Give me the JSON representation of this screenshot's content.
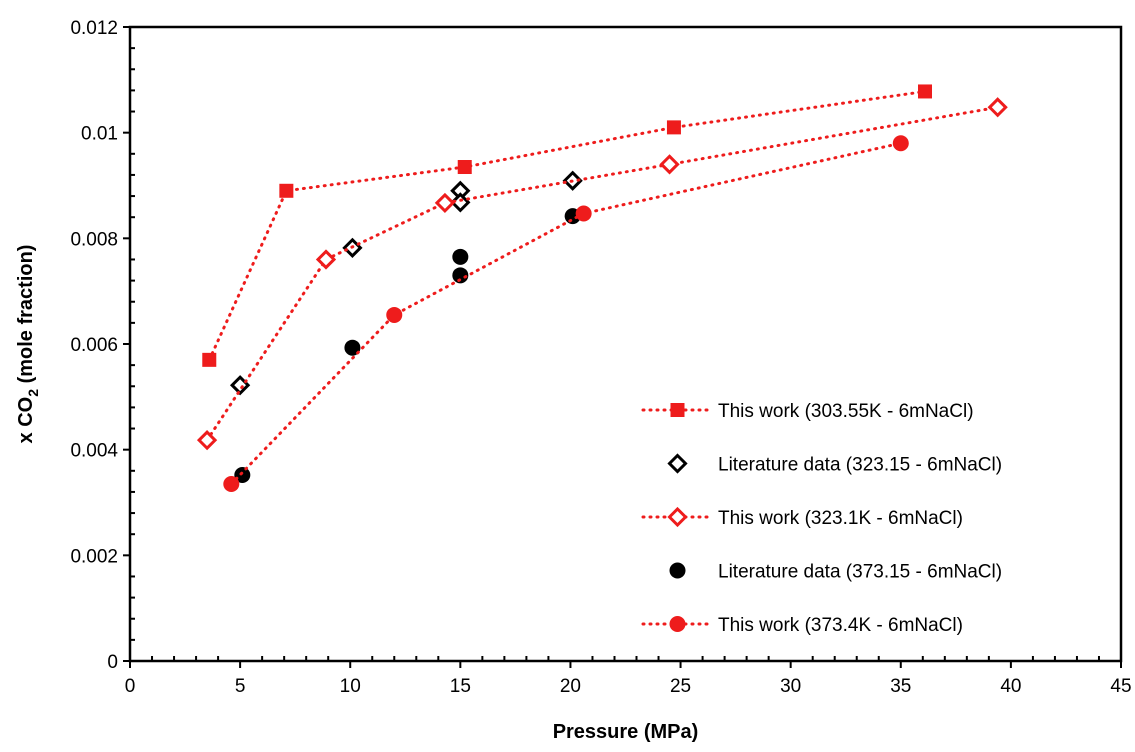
{
  "chart_data": {
    "type": "scatter",
    "xlabel": "Pressure (MPa)",
    "ylabel": "x CO2 (mole fraction)",
    "ylabel_parts": {
      "pre": "x CO",
      "sub": "2",
      "post": " (mole fraction)"
    },
    "xlim": [
      0,
      45
    ],
    "ylim": [
      0,
      0.012
    ],
    "x_ticks": [
      "0",
      "5",
      "10",
      "15",
      "20",
      "25",
      "30",
      "35",
      "40",
      "45"
    ],
    "y_ticks": [
      "0",
      "0.002",
      "0.004",
      "0.006",
      "0.008",
      "0.01",
      "0.012"
    ],
    "x_tick_values": [
      0,
      5,
      10,
      15,
      20,
      25,
      30,
      35,
      40,
      45
    ],
    "y_tick_values": [
      0,
      0.002,
      0.004,
      0.006,
      0.008,
      0.01,
      0.012
    ],
    "grid": false,
    "legend_position": "right",
    "series": [
      {
        "name": "This work (303.55K - 6mNaCl)",
        "marker": "square",
        "color": "#ee1c1c",
        "line": "dotted",
        "x": [
          3.6,
          7.1,
          15.2,
          24.7,
          36.1
        ],
        "y": [
          0.0057,
          0.0089,
          0.00935,
          0.0101,
          0.01078
        ]
      },
      {
        "name": "Literature data (323.15 - 6mNaCl)",
        "marker": "diamond-open",
        "color": "#000000",
        "line": "none",
        "x": [
          5.0,
          10.1,
          15.0,
          15.0,
          20.1
        ],
        "y": [
          0.00522,
          0.00782,
          0.0089,
          0.00868,
          0.00909
        ]
      },
      {
        "name": "This work (323.1K - 6mNaCl)",
        "marker": "diamond-open",
        "color": "#ee1c1c",
        "line": "dotted",
        "x": [
          3.5,
          8.9,
          14.3,
          24.5,
          39.4
        ],
        "y": [
          0.00418,
          0.0076,
          0.00867,
          0.0094,
          0.01048
        ]
      },
      {
        "name": "Literature data (373.15 - 6mNaCl)",
        "marker": "circle",
        "color": "#000000",
        "line": "none",
        "x": [
          5.1,
          10.1,
          15.0,
          15.0,
          20.1
        ],
        "y": [
          0.00352,
          0.00593,
          0.00765,
          0.0073,
          0.00842
        ]
      },
      {
        "name": "This work (373.4K - 6mNaCl)",
        "marker": "circle",
        "color": "#ee1c1c",
        "line": "dotted",
        "x": [
          4.6,
          12.0,
          20.6,
          35.0
        ],
        "y": [
          0.00335,
          0.00655,
          0.00847,
          0.0098
        ]
      }
    ]
  }
}
